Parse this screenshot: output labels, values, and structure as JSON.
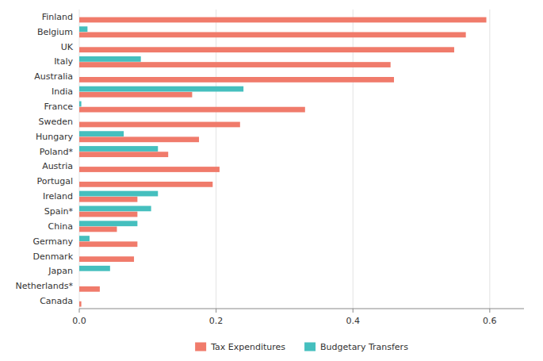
{
  "chart_data": {
    "type": "bar",
    "orientation": "horizontal",
    "categories": [
      "Finland",
      "Belgium",
      "UK",
      "Italy",
      "Australia",
      "India",
      "France",
      "Sweden",
      "Hungary",
      "Poland*",
      "Austria",
      "Portugal",
      "Ireland",
      "Spain*",
      "China",
      "Germany",
      "Denmark",
      "Japan",
      "Netherlands*",
      "Canada"
    ],
    "series": [
      {
        "name": "Tax Expenditures",
        "color": "#F07B6B",
        "values": [
          0.595,
          0.565,
          0.548,
          0.455,
          0.46,
          0.165,
          0.33,
          0.235,
          0.175,
          0.13,
          0.205,
          0.195,
          0.085,
          0.085,
          0.055,
          0.085,
          0.08,
          0.0,
          0.03,
          0.003
        ]
      },
      {
        "name": "Budgetary Transfers",
        "color": "#45BFBE",
        "values": [
          0.0,
          0.012,
          0.0,
          0.09,
          0.0,
          0.24,
          0.003,
          0.0,
          0.065,
          0.115,
          0.0,
          0.0,
          0.115,
          0.105,
          0.085,
          0.015,
          0.0,
          0.045,
          0.0,
          0.0
        ]
      }
    ],
    "xlim": [
      0,
      0.65
    ],
    "xticks": [
      {
        "value": 0.0,
        "label": "0.0"
      },
      0.2,
      0.4,
      0.6
    ],
    "grid": true,
    "legend": "bottom"
  }
}
